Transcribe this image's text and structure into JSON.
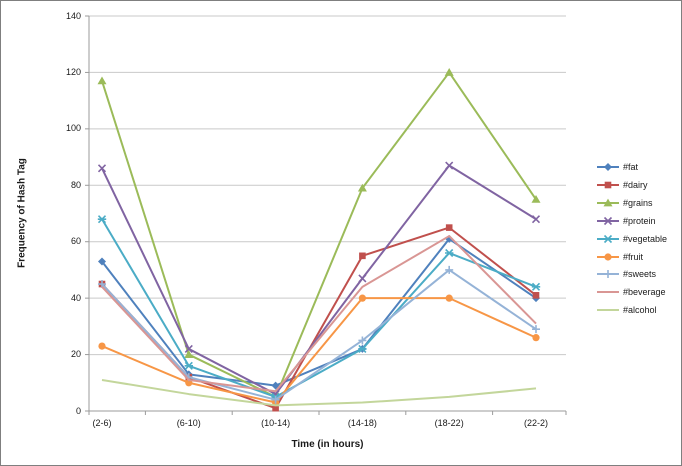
{
  "figure": {
    "background": "#ffffff",
    "border_color": "#7f7f7f",
    "gridline_color": "#c9c9c9",
    "axis_color": "#9b9b9b",
    "text_color": "#1a1a1a"
  },
  "chart_data": {
    "type": "line",
    "title": "",
    "xlabel": "Time (in hours)",
    "ylabel": "Frequency of Hash Tag",
    "categories": [
      "(2-6)",
      "(6-10)",
      "(10-14)",
      "(14-18)",
      "(18-22)",
      "(22-2)"
    ],
    "series": [
      {
        "name": "#fat",
        "color": "#4F81BD",
        "marker": "diamond",
        "values": [
          53,
          13,
          9,
          22,
          61,
          40
        ]
      },
      {
        "name": "#dairy",
        "color": "#C0504D",
        "marker": "square",
        "values": [
          45,
          12,
          1,
          55,
          65,
          41
        ]
      },
      {
        "name": "#grains",
        "color": "#9BBB59",
        "marker": "triangle",
        "values": [
          117,
          20,
          5,
          79,
          120,
          75
        ]
      },
      {
        "name": "#protein",
        "color": "#8064A2",
        "marker": "x",
        "values": [
          86,
          22,
          6,
          47,
          87,
          68
        ]
      },
      {
        "name": "#vegetable",
        "color": "#4BACC6",
        "marker": "star",
        "values": [
          68,
          16,
          5,
          22,
          56,
          44
        ]
      },
      {
        "name": "#fruit",
        "color": "#F79646",
        "marker": "circle",
        "values": [
          23,
          10,
          3,
          40,
          40,
          26
        ]
      },
      {
        "name": "#sweets",
        "color": "#95B3D7",
        "marker": "plus",
        "values": [
          45,
          12,
          4,
          25,
          50,
          29
        ]
      },
      {
        "name": "#beverage",
        "color": "#D99694",
        "marker": "none",
        "values": [
          44,
          11,
          7,
          44,
          62,
          31
        ]
      },
      {
        "name": "#alcohol",
        "color": "#C3D69B",
        "marker": "none",
        "values": [
          11,
          6,
          2,
          3,
          5,
          8
        ]
      }
    ],
    "ylim": [
      0,
      140
    ],
    "ytick_step": 20,
    "grid": true,
    "legend_position": "right"
  }
}
